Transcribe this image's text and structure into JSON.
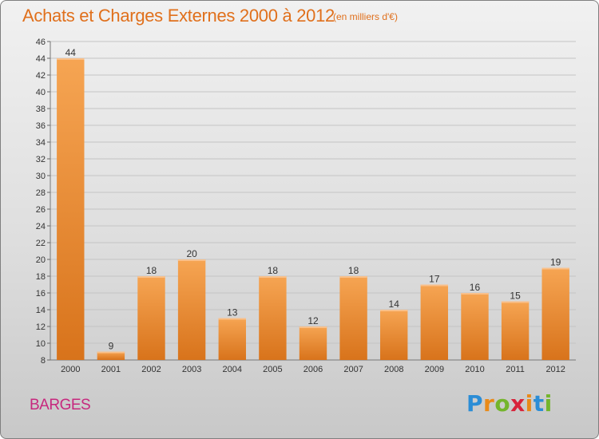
{
  "title": "Achats et Charges Externes 2000 à 2012",
  "unit_note": "(en milliers d'€)",
  "commune": "BARGES",
  "brand": {
    "letters": [
      "P",
      "r",
      "o",
      "x",
      "i",
      "t",
      "i"
    ],
    "colors": [
      "#2b8dd6",
      "#e98a19",
      "#74b52c",
      "#d8233a",
      "#e98a19",
      "#2b8dd6",
      "#74b52c"
    ]
  },
  "colors": {
    "bar_light": "#f6a553",
    "bar_dark": "#d8731b",
    "title": "#e0701c",
    "commune": "#c7287e",
    "grid": "#c4c4c4"
  },
  "chart_data": {
    "type": "bar",
    "title": "Achats et Charges Externes 2000 à 2012",
    "subtitle": "(en milliers d'€)",
    "xlabel": "",
    "ylabel": "",
    "categories": [
      "2000",
      "2001",
      "2002",
      "2003",
      "2004",
      "2005",
      "2006",
      "2007",
      "2008",
      "2009",
      "2010",
      "2011",
      "2012"
    ],
    "values": [
      44,
      9,
      18,
      20,
      13,
      18,
      12,
      18,
      14,
      17,
      16,
      15,
      19
    ],
    "ylim": [
      8,
      46
    ],
    "yticks": [
      8,
      10,
      12,
      14,
      16,
      18,
      20,
      22,
      24,
      26,
      28,
      30,
      32,
      34,
      36,
      38,
      40,
      42,
      44,
      46
    ],
    "grid": true,
    "legend": "none"
  }
}
